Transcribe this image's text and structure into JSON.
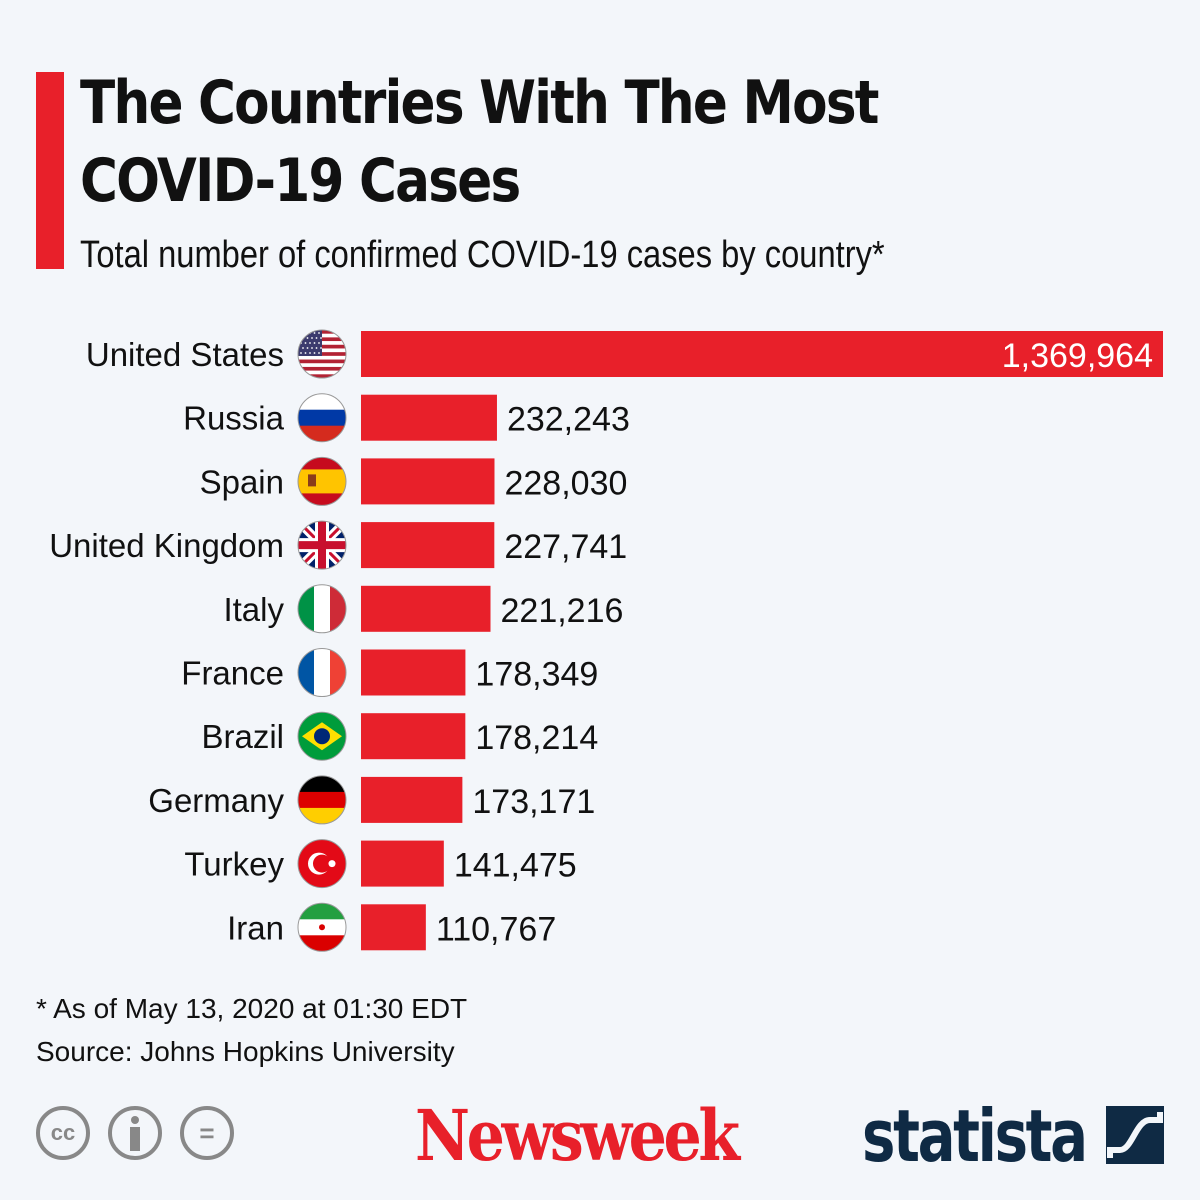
{
  "header": {
    "title": "The Countries With The Most COVID-19 Cases",
    "subtitle": "Total number of confirmed COVID-19 cases by country*",
    "accent_color": "#e8202a"
  },
  "chart_data": {
    "type": "bar",
    "orientation": "horizontal",
    "title": "The Countries With The Most COVID-19 Cases",
    "subtitle": "Total number of confirmed COVID-19 cases by country*",
    "categories": [
      "United States",
      "Russia",
      "Spain",
      "United Kingdom",
      "Italy",
      "France",
      "Brazil",
      "Germany",
      "Turkey",
      "Iran"
    ],
    "values": [
      1369964,
      232243,
      228030,
      227741,
      221216,
      178349,
      178214,
      173171,
      141475,
      110767
    ],
    "labels": [
      "1,369,964",
      "232,243",
      "228,030",
      "227,741",
      "221,216",
      "178,349",
      "178,214",
      "173,171",
      "141,475",
      "110,767"
    ],
    "flags": [
      "us-flag-icon",
      "russia-flag-icon",
      "spain-flag-icon",
      "uk-flag-icon",
      "italy-flag-icon",
      "france-flag-icon",
      "brazil-flag-icon",
      "germany-flag-icon",
      "turkey-flag-icon",
      "iran-flag-icon"
    ],
    "bar_color": "#e8202a",
    "grid": false,
    "xlim": [
      0,
      1369964
    ]
  },
  "footer": {
    "note": "* As of May 13, 2020 at 01:30 EDT",
    "source": "Source: Johns Hopkins University",
    "license_icons": [
      "cc-icon",
      "attribution-icon",
      "no-derivatives-icon"
    ],
    "cc_text": "cc",
    "nd_text": "="
  },
  "logos": {
    "newsweek": "Newsweek",
    "statista": "statista"
  }
}
